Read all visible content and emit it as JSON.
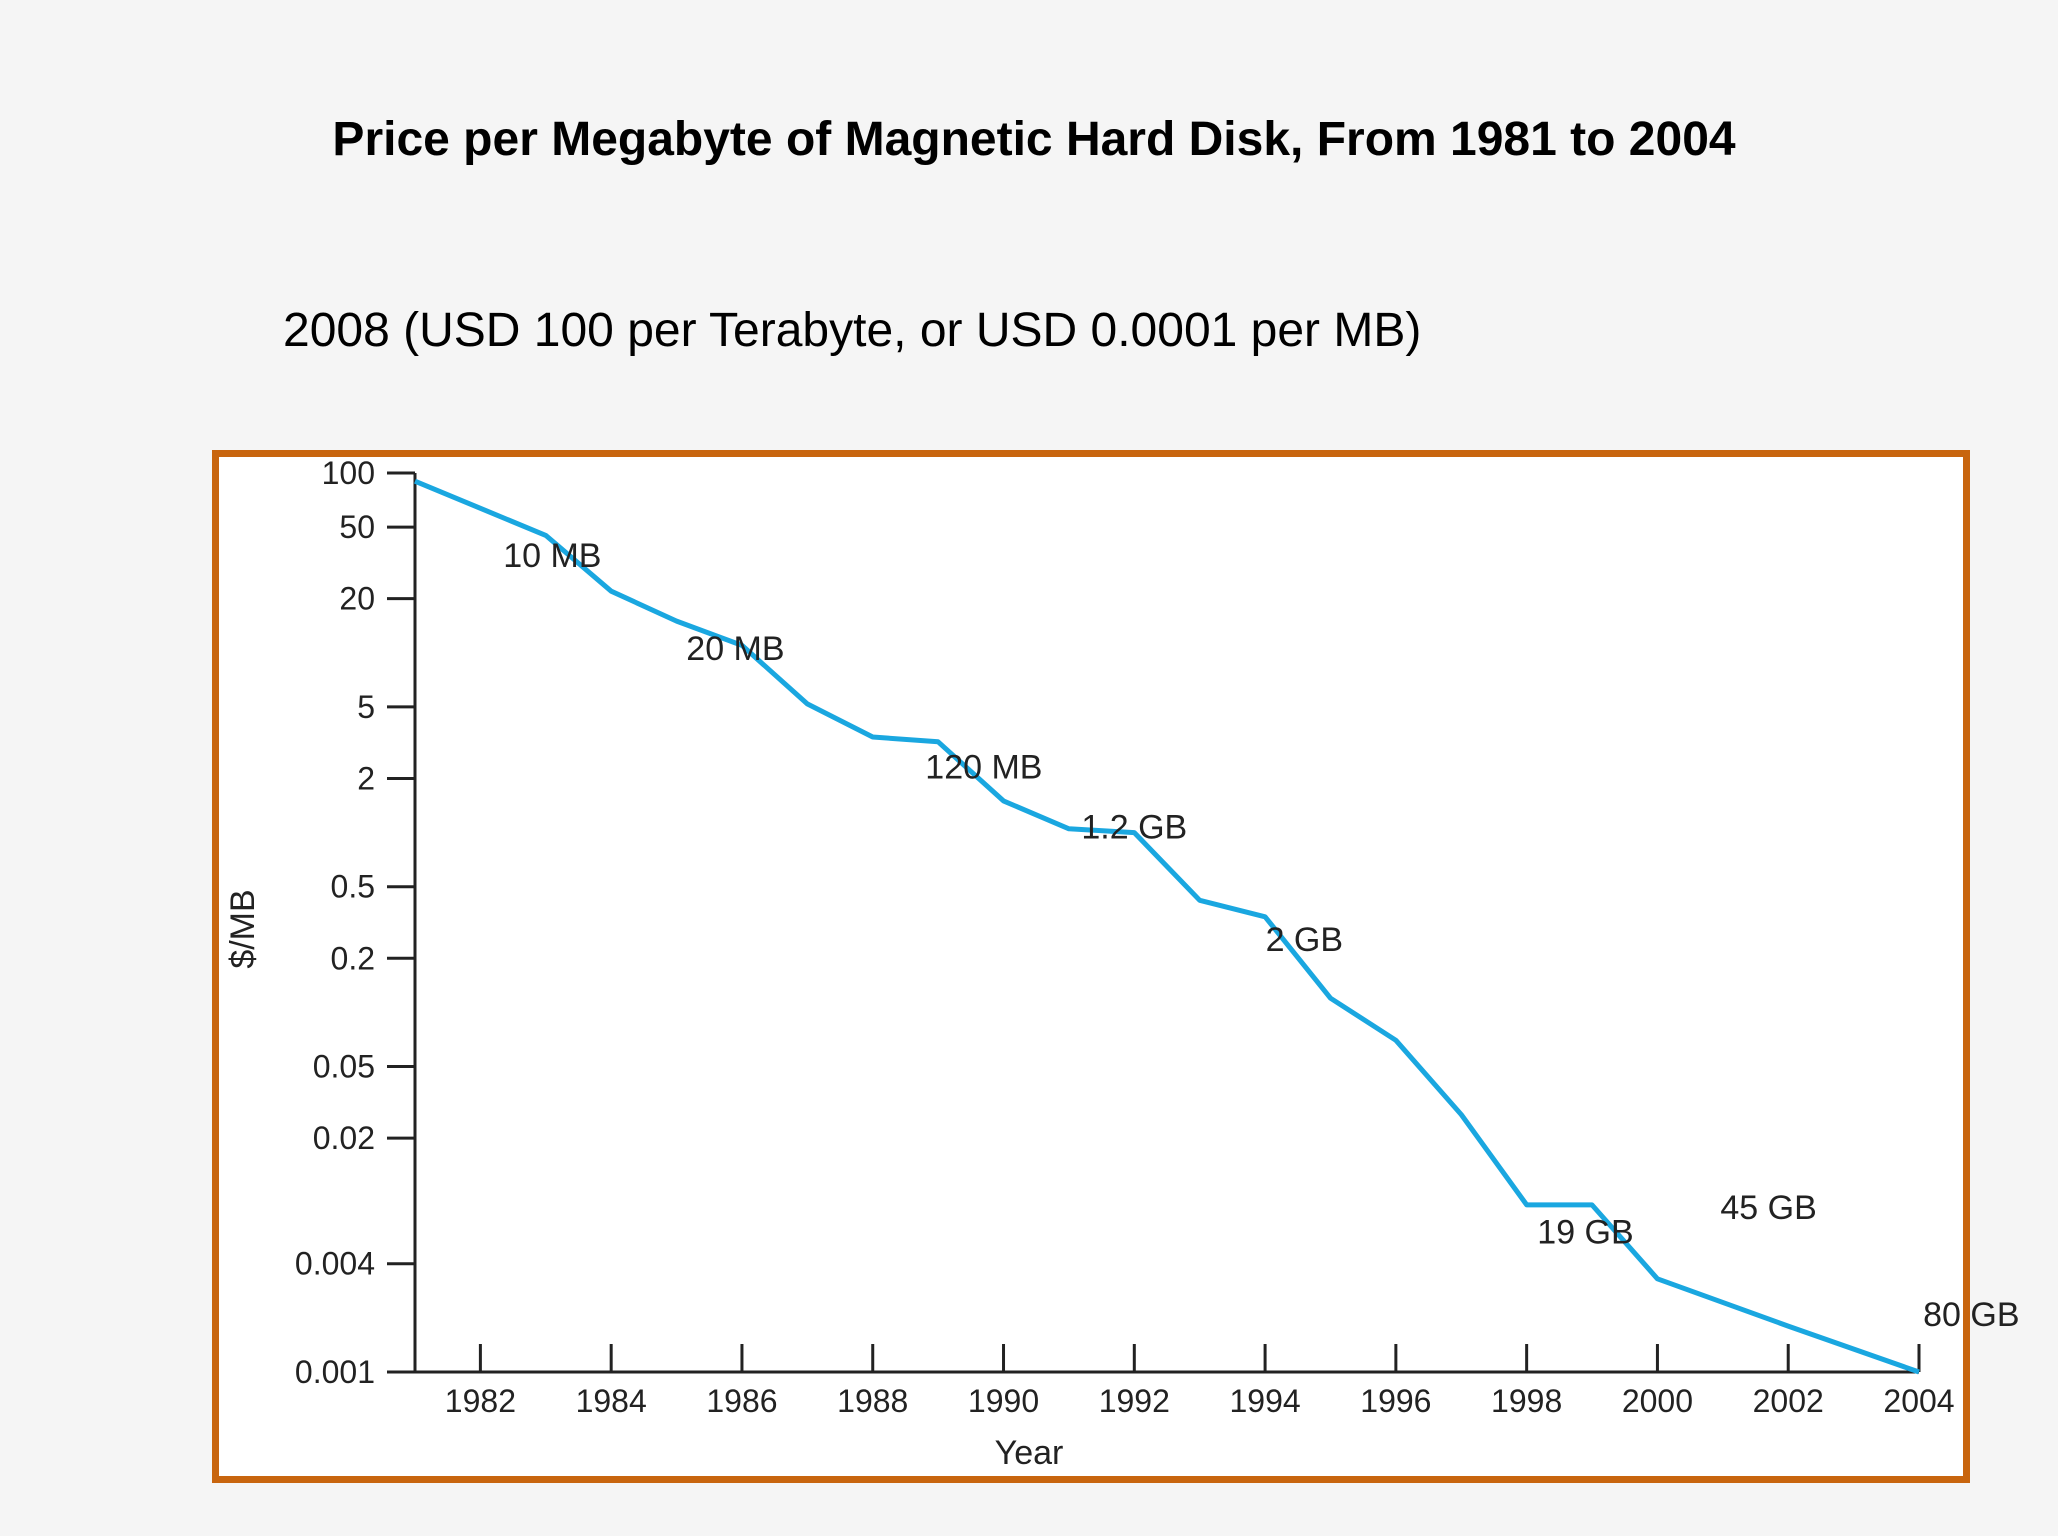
{
  "slide": {
    "title": "Price per Megabyte of Magnetic Hard Disk, From 1981 to 2004",
    "subtitle": "2008 (USD 100 per Terabyte, or USD 0.0001 per MB)"
  },
  "colors": {
    "frame": "#c8650e",
    "line": "#1aa7e0",
    "axis": "#222222"
  },
  "chart_data": {
    "type": "line",
    "xlabel": "Year",
    "ylabel": "$/MB",
    "xlim": [
      1981,
      2004
    ],
    "ylim": [
      0.001,
      100
    ],
    "y_scale": "log",
    "x_ticks": [
      1982,
      1984,
      1986,
      1988,
      1990,
      1992,
      1994,
      1996,
      1998,
      2000,
      2002,
      2004
    ],
    "y_ticks": [
      "100",
      "50",
      "20",
      "5",
      "2",
      "0.5",
      "0.2",
      "0.05",
      "0.02",
      "0.004",
      "0.001"
    ],
    "series": [
      {
        "x": [
          1981,
          1983,
          1984,
          1985,
          1986,
          1987,
          1988,
          1989,
          1990,
          1991,
          1992,
          1993,
          1994,
          1995,
          1996,
          1997,
          1998,
          1999,
          2000,
          2002,
          2004
        ],
        "y": [
          90,
          45,
          22,
          15,
          11,
          5.2,
          3.4,
          3.2,
          1.5,
          1.05,
          1.0,
          0.42,
          0.34,
          0.12,
          0.07,
          0.027,
          0.0085,
          0.0085,
          0.0033,
          0.0018,
          0.001
        ]
      }
    ],
    "annotations": [
      {
        "text": "10 MB",
        "x": 1983.1,
        "y": 30
      },
      {
        "text": "20 MB",
        "x": 1985.9,
        "y": 9.1
      },
      {
        "text": "120 MB",
        "x": 1989.7,
        "y": 2.0
      },
      {
        "text": "1.2 GB",
        "x": 1992.0,
        "y": 0.93
      },
      {
        "text": "2 GB",
        "x": 1994.6,
        "y": 0.22
      },
      {
        "text": "19 GB",
        "x": 1998.9,
        "y": 0.0052
      },
      {
        "text": "45 GB",
        "x": 2001.7,
        "y": 0.0071
      },
      {
        "text": "80 GB",
        "x": 2004.8,
        "y": 0.0018
      }
    ]
  }
}
